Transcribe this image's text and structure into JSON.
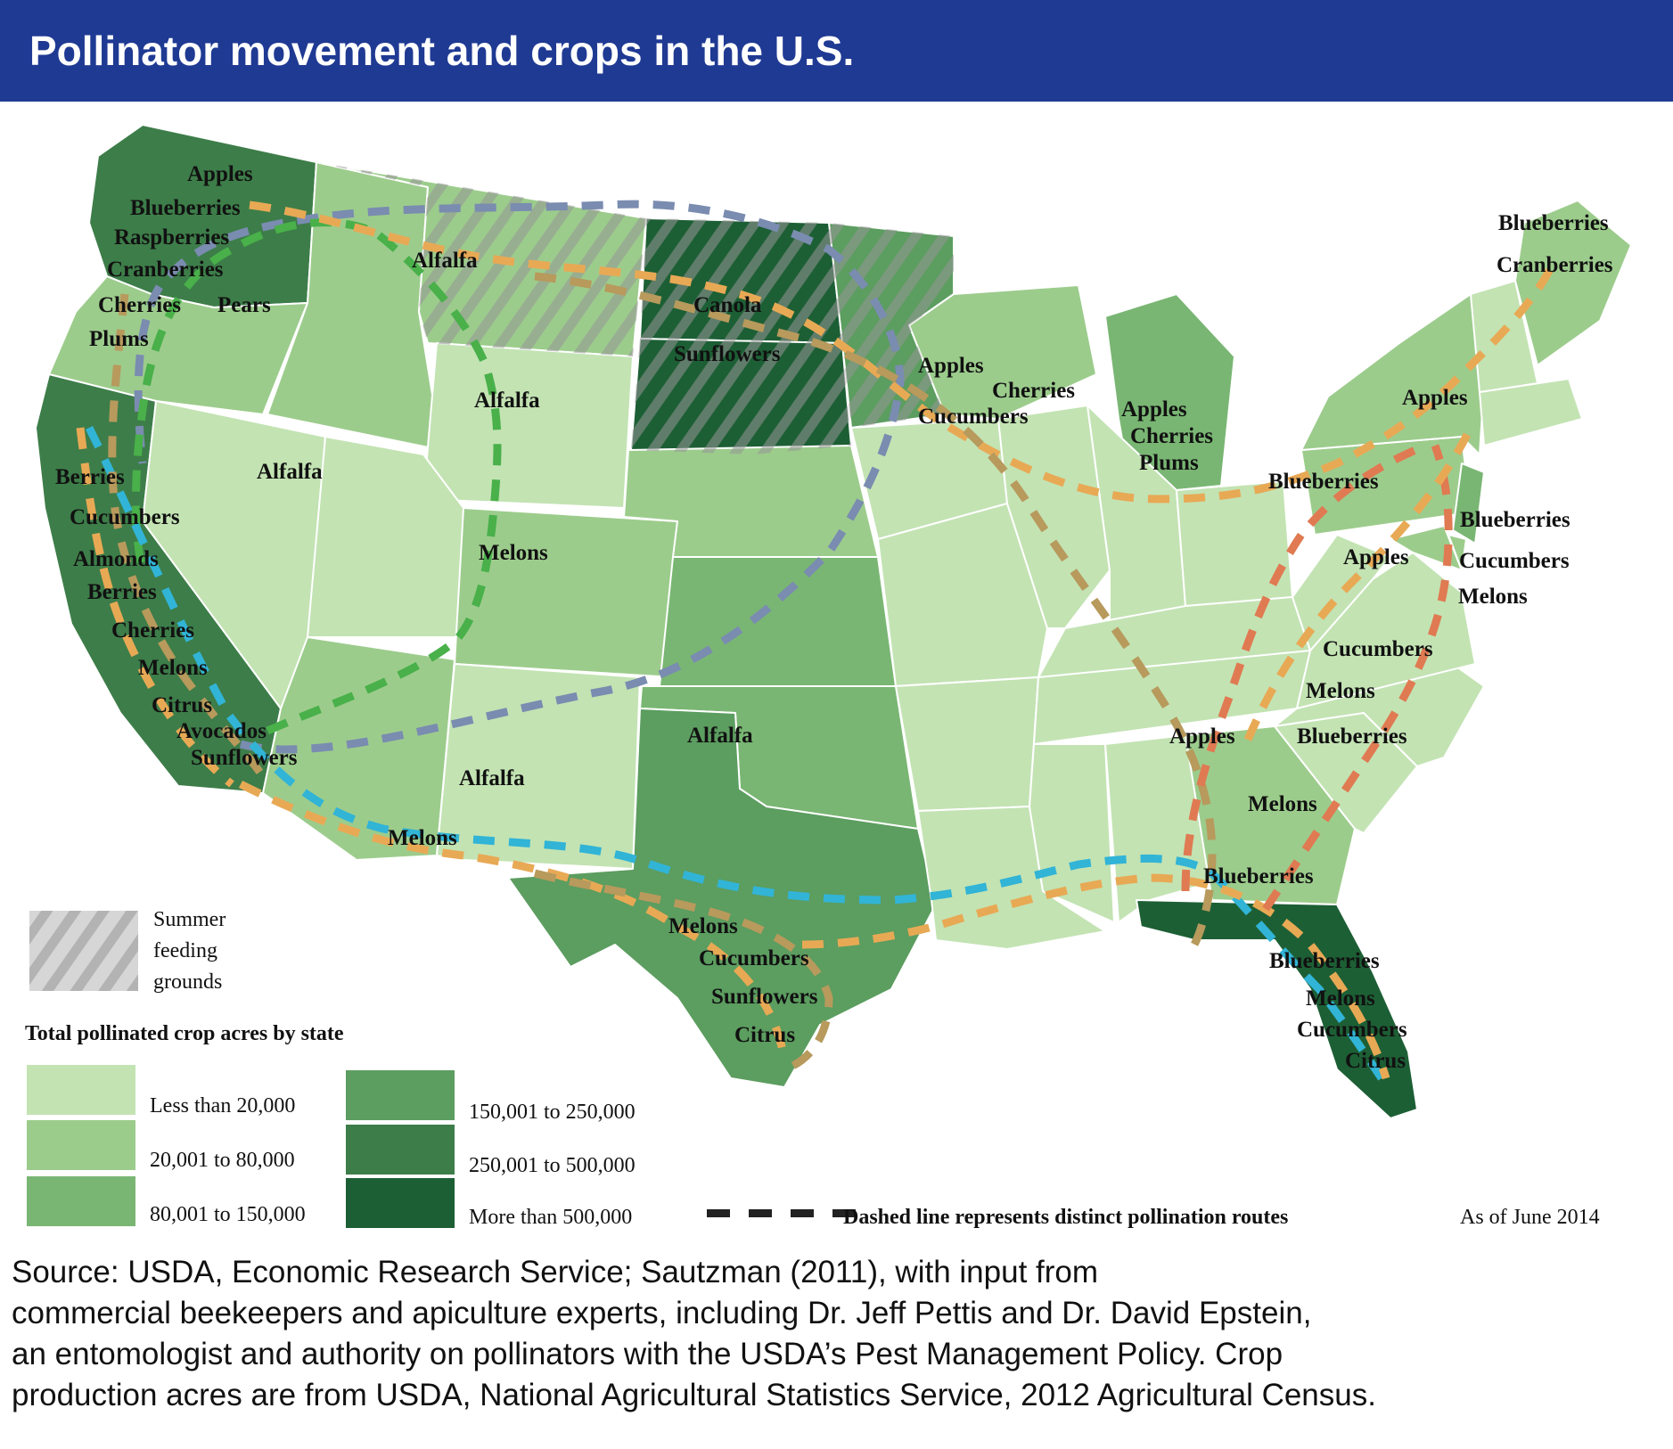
{
  "title": "Pollinator movement and crops in the U.S.",
  "colors": {
    "header": "#1f3a93",
    "bins": [
      "#c3e3b3",
      "#9ccc8c",
      "#79b673",
      "#5c9d60",
      "#3d7d49",
      "#1d5f35"
    ],
    "hatch": "#9a9a9a",
    "route_blue": "#7a8cb0",
    "route_green": "#49b04a",
    "route_orange": "#e8a955",
    "route_tan": "#b79a5c",
    "route_cyan": "#31b4d6",
    "route_red": "#e07a52"
  },
  "map_labels": {
    "wa": [
      "Apples",
      "Blueberries",
      "Raspberries",
      "Cranberries"
    ],
    "or": [
      "Cherries",
      "Pears",
      "Plums"
    ],
    "mt": "Alfalfa",
    "wy": "Alfalfa",
    "id": "Alfalfa",
    "ut_co": "Melons",
    "nm": "Alfalfa",
    "tx_nw": "Alfalfa",
    "az": "Melons",
    "nd": "Canola",
    "sd": "Sunflowers",
    "mn": [
      "Apples",
      "Cucumbers"
    ],
    "wi": "Cherries",
    "mi": [
      "Apples",
      "Cherries",
      "Plums"
    ],
    "ca": [
      "Berries",
      "Cucumbers",
      "Almonds",
      "Berries",
      "Cherries",
      "Melons",
      "Citrus",
      "Avocados",
      "Sunflowers"
    ],
    "tx": [
      "Melons",
      "Cucumbers",
      "Sunflowers",
      "Citrus"
    ],
    "me": [
      "Blueberries",
      "Cranberries"
    ],
    "ny": "Apples",
    "pa": "Blueberries",
    "nj": [
      "Blueberries",
      "Cucumbers",
      "Melons"
    ],
    "va": "Apples",
    "nc": [
      "Cucumbers",
      "Melons",
      "Blueberries"
    ],
    "ga": [
      "Apples",
      "Melons",
      "Blueberries"
    ],
    "fl": [
      "Blueberries",
      "Melons",
      "Cucumbers",
      "Citrus"
    ]
  },
  "legend": {
    "hatch_label": [
      "Summer",
      "feeding",
      "grounds"
    ],
    "title": "Total pollinated crop acres by state",
    "bins": [
      "Less than 20,000",
      "20,001 to 80,000",
      "80,001 to 150,000",
      "150,001 to 250,000",
      "250,001 to 500,000",
      "More than 500,000"
    ],
    "route_label": "Dashed line represents distinct pollination routes",
    "date": "As of June 2014"
  },
  "source_lines": [
    "Source:  USDA, Economic Research Service; Sautzman (2011), with input from",
    "commercial beekeepers and apiculture experts, including Dr. Jeff Pettis and Dr. David Epstein,",
    "an entomologist and authority on pollinators with the USDA’s Pest Management Policy.  Crop",
    "production acres are from USDA, National Agricultural Statistics Service, 2012 Agricultural Census."
  ]
}
